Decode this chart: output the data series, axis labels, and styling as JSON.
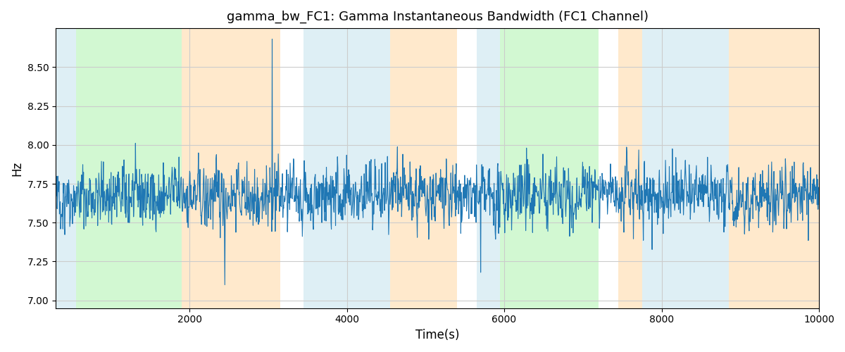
{
  "title": "gamma_bw_FC1: Gamma Instantaneous Bandwidth (FC1 Channel)",
  "xlabel": "Time(s)",
  "ylabel": "Hz",
  "xlim": [
    300,
    10000
  ],
  "ylim": [
    6.95,
    8.75
  ],
  "yticks": [
    7.0,
    7.25,
    7.5,
    7.75,
    8.0,
    8.25,
    8.5
  ],
  "xticks": [
    2000,
    4000,
    6000,
    8000,
    10000
  ],
  "line_color": "#1f77b4",
  "line_width": 0.8,
  "background_color": "#ffffff",
  "grid_color": "#cccccc",
  "seed": 42,
  "n_points": 2000,
  "x_start": 300,
  "x_end": 10000,
  "signal_mean": 7.67,
  "signal_std": 0.12,
  "colored_bands": [
    {
      "xmin": 300,
      "xmax": 560,
      "color": "#add8e6",
      "alpha": 0.4
    },
    {
      "xmin": 560,
      "xmax": 1900,
      "color": "#90ee90",
      "alpha": 0.4
    },
    {
      "xmin": 1900,
      "xmax": 3150,
      "color": "#ffd59a",
      "alpha": 0.5
    },
    {
      "xmin": 3450,
      "xmax": 4550,
      "color": "#add8e6",
      "alpha": 0.4
    },
    {
      "xmin": 4550,
      "xmax": 5400,
      "color": "#ffd59a",
      "alpha": 0.5
    },
    {
      "xmin": 5650,
      "xmax": 5950,
      "color": "#add8e6",
      "alpha": 0.4
    },
    {
      "xmin": 5950,
      "xmax": 7200,
      "color": "#90ee90",
      "alpha": 0.4
    },
    {
      "xmin": 7450,
      "xmax": 7750,
      "color": "#ffd59a",
      "alpha": 0.5
    },
    {
      "xmin": 7750,
      "xmax": 8850,
      "color": "#add8e6",
      "alpha": 0.4
    },
    {
      "xmin": 8850,
      "xmax": 10000,
      "color": "#ffd59a",
      "alpha": 0.5
    }
  ],
  "spike_x": 3050,
  "spike_y": 8.68
}
